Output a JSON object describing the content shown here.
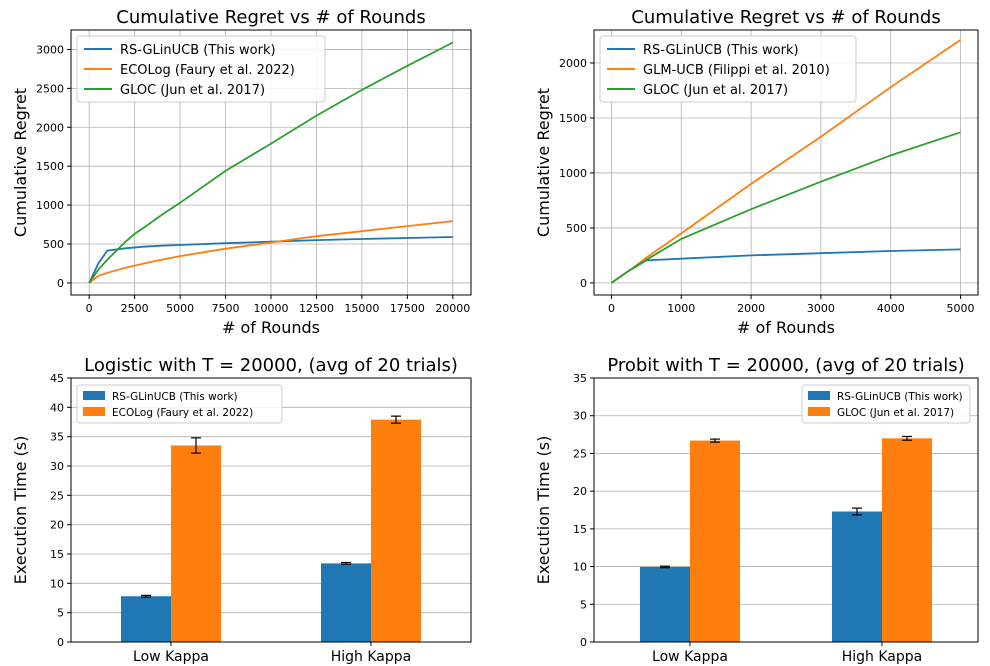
{
  "chart_data": [
    {
      "type": "line",
      "title": "Cumulative Regret vs # of Rounds",
      "xlabel": "# of Rounds",
      "ylabel": "Cumulative Regret",
      "xlim": [
        -1000,
        21000
      ],
      "ylim": [
        -155,
        3250
      ],
      "xticks": [
        0,
        2500,
        5000,
        7500,
        10000,
        12500,
        15000,
        17500,
        20000
      ],
      "yticks": [
        0,
        500,
        1000,
        1500,
        2000,
        2500,
        3000
      ],
      "grid": true,
      "legend_position": "upper-left",
      "series": [
        {
          "name": "RS-GLinUCB (This work)",
          "color": "#1f77b4",
          "x": [
            0,
            500,
            1000,
            2000,
            3000,
            4000,
            5000,
            7500,
            10000,
            12500,
            15000,
            17500,
            20000
          ],
          "y": [
            0,
            250,
            415,
            445,
            465,
            478,
            488,
            510,
            530,
            550,
            565,
            578,
            590
          ]
        },
        {
          "name": "ECOLog (Faury et al. 2022)",
          "color": "#ff7f0e",
          "x": [
            0,
            500,
            1000,
            2000,
            3000,
            4000,
            5000,
            7500,
            10000,
            12500,
            15000,
            17500,
            20000
          ],
          "y": [
            0,
            90,
            130,
            195,
            250,
            300,
            345,
            440,
            520,
            600,
            665,
            730,
            795
          ]
        },
        {
          "name": "GLOC (Jun et al. 2017)",
          "color": "#2ca02c",
          "x": [
            0,
            500,
            1000,
            2000,
            2500,
            3000,
            4000,
            5000,
            7500,
            10000,
            12500,
            15000,
            17500,
            20000
          ],
          "y": [
            0,
            170,
            300,
            530,
            630,
            710,
            875,
            1030,
            1440,
            1790,
            2150,
            2480,
            2790,
            3090
          ]
        }
      ]
    },
    {
      "type": "line",
      "title": "Cumulative Regret vs # of Rounds",
      "xlabel": "# of Rounds",
      "ylabel": "Cumulative Regret",
      "xlim": [
        -250,
        5250
      ],
      "ylim": [
        -110,
        2300
      ],
      "xticks": [
        0,
        1000,
        2000,
        3000,
        4000,
        5000
      ],
      "yticks": [
        0,
        500,
        1000,
        1500,
        2000
      ],
      "grid": true,
      "legend_position": "upper-left",
      "series": [
        {
          "name": "RS-GLinUCB (This work)",
          "color": "#1f77b4",
          "x": [
            0,
            250,
            500,
            1000,
            2000,
            3000,
            4000,
            5000
          ],
          "y": [
            0,
            110,
            205,
            220,
            250,
            270,
            290,
            305
          ]
        },
        {
          "name": "GLM-UCB (Filippi et al. 2010)",
          "color": "#ff7f0e",
          "x": [
            0,
            250,
            500,
            1000,
            2000,
            3000,
            4000,
            5000
          ],
          "y": [
            0,
            110,
            230,
            450,
            900,
            1330,
            1780,
            2210
          ]
        },
        {
          "name": "GLOC (Jun et al. 2017)",
          "color": "#2ca02c",
          "x": [
            0,
            250,
            500,
            1000,
            2000,
            3000,
            4000,
            5000
          ],
          "y": [
            0,
            110,
            210,
            400,
            670,
            920,
            1160,
            1370
          ]
        }
      ]
    },
    {
      "type": "bar",
      "title": "Logistic with T = 20000, (avg of 20 trials)",
      "xlabel": "",
      "ylabel": "Execution Time (s)",
      "categories": [
        "Low Kappa",
        "High Kappa"
      ],
      "ylim": [
        0,
        45
      ],
      "yticks": [
        0,
        5,
        10,
        15,
        20,
        25,
        30,
        35,
        40,
        45
      ],
      "grid": true,
      "legend_position": "upper-left",
      "series": [
        {
          "name": "RS-GLinUCB (This work)",
          "color": "#1f77b4",
          "values": [
            7.8,
            13.4
          ],
          "errors": [
            0.15,
            0.15
          ]
        },
        {
          "name": "ECOLog (Faury et al. 2022)",
          "color": "#ff7f0e",
          "values": [
            33.5,
            37.9
          ],
          "errors": [
            1.3,
            0.6
          ]
        }
      ]
    },
    {
      "type": "bar",
      "title": "Probit with T = 20000, (avg of 20 trials)",
      "xlabel": "",
      "ylabel": "Execution Time (s)",
      "categories": [
        "Low Kappa",
        "High Kappa"
      ],
      "ylim": [
        0,
        35
      ],
      "yticks": [
        0,
        5,
        10,
        15,
        20,
        25,
        30,
        35
      ],
      "grid": true,
      "legend_position": "upper-right",
      "series": [
        {
          "name": "RS-GLinUCB (This work)",
          "color": "#1f77b4",
          "values": [
            9.95,
            17.3
          ],
          "errors": [
            0.1,
            0.45
          ]
        },
        {
          "name": "GLOC (Jun et al. 2017)",
          "color": "#ff7f0e",
          "values": [
            26.7,
            27.0
          ],
          "errors": [
            0.2,
            0.25
          ]
        }
      ]
    }
  ]
}
